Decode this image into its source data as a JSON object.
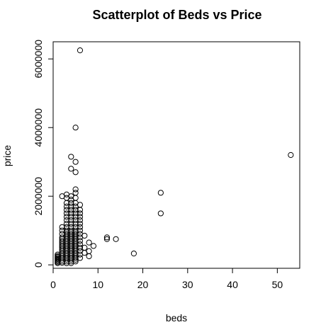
{
  "chart_data": {
    "type": "scatter",
    "title": "Scatterplot of Beds vs Price",
    "xlabel": "beds",
    "ylabel": "price",
    "xlim": [
      0,
      55
    ],
    "ylim": [
      -100000,
      6500000
    ],
    "x_ticks": [
      0,
      10,
      20,
      30,
      40,
      50
    ],
    "x_tick_labels": [
      "0",
      "10",
      "20",
      "30",
      "40",
      "50"
    ],
    "y_ticks": [
      0,
      2000000,
      4000000,
      6000000
    ],
    "y_tick_labels": [
      "0",
      "2000000",
      "4000000",
      "6000000"
    ],
    "grid": false,
    "series": [
      {
        "marker": "open-circle",
        "points": [
          [
            1,
            50000
          ],
          [
            1,
            80000
          ],
          [
            1,
            110000
          ],
          [
            1,
            140000
          ],
          [
            1,
            170000
          ],
          [
            1,
            200000
          ],
          [
            1,
            230000
          ],
          [
            1,
            260000
          ],
          [
            1,
            300000
          ],
          [
            2,
            60000
          ],
          [
            2,
            100000
          ],
          [
            2,
            150000
          ],
          [
            2,
            200000
          ],
          [
            2,
            250000
          ],
          [
            2,
            300000
          ],
          [
            2,
            350000
          ],
          [
            2,
            400000
          ],
          [
            2,
            450000
          ],
          [
            2,
            500000
          ],
          [
            2,
            550000
          ],
          [
            2,
            600000
          ],
          [
            2,
            650000
          ],
          [
            2,
            700000
          ],
          [
            2,
            750000
          ],
          [
            2,
            800000
          ],
          [
            2,
            900000
          ],
          [
            2,
            1000000
          ],
          [
            2,
            1100000
          ],
          [
            2,
            2000000
          ],
          [
            3,
            50000
          ],
          [
            3,
            100000
          ],
          [
            3,
            150000
          ],
          [
            3,
            200000
          ],
          [
            3,
            250000
          ],
          [
            3,
            300000
          ],
          [
            3,
            350000
          ],
          [
            3,
            400000
          ],
          [
            3,
            450000
          ],
          [
            3,
            500000
          ],
          [
            3,
            550000
          ],
          [
            3,
            600000
          ],
          [
            3,
            650000
          ],
          [
            3,
            700000
          ],
          [
            3,
            750000
          ],
          [
            3,
            800000
          ],
          [
            3,
            850000
          ],
          [
            3,
            900000
          ],
          [
            3,
            950000
          ],
          [
            3,
            1000000
          ],
          [
            3,
            1100000
          ],
          [
            3,
            1200000
          ],
          [
            3,
            1300000
          ],
          [
            3,
            1400000
          ],
          [
            3,
            1500000
          ],
          [
            3,
            1600000
          ],
          [
            3,
            1700000
          ],
          [
            3,
            1800000
          ],
          [
            3,
            1950000
          ],
          [
            3,
            2050000
          ],
          [
            4,
            50000
          ],
          [
            4,
            100000
          ],
          [
            4,
            150000
          ],
          [
            4,
            200000
          ],
          [
            4,
            250000
          ],
          [
            4,
            300000
          ],
          [
            4,
            350000
          ],
          [
            4,
            400000
          ],
          [
            4,
            450000
          ],
          [
            4,
            500000
          ],
          [
            4,
            550000
          ],
          [
            4,
            600000
          ],
          [
            4,
            650000
          ],
          [
            4,
            700000
          ],
          [
            4,
            750000
          ],
          [
            4,
            800000
          ],
          [
            4,
            850000
          ],
          [
            4,
            900000
          ],
          [
            4,
            950000
          ],
          [
            4,
            1000000
          ],
          [
            4,
            1100000
          ],
          [
            4,
            1200000
          ],
          [
            4,
            1300000
          ],
          [
            4,
            1400000
          ],
          [
            4,
            1500000
          ],
          [
            4,
            1600000
          ],
          [
            4,
            1700000
          ],
          [
            4,
            1800000
          ],
          [
            4,
            1900000
          ],
          [
            4,
            2000000
          ],
          [
            4,
            2800000
          ],
          [
            4,
            3150000
          ],
          [
            5,
            100000
          ],
          [
            5,
            150000
          ],
          [
            5,
            200000
          ],
          [
            5,
            250000
          ],
          [
            5,
            300000
          ],
          [
            5,
            350000
          ],
          [
            5,
            400000
          ],
          [
            5,
            450000
          ],
          [
            5,
            500000
          ],
          [
            5,
            550000
          ],
          [
            5,
            600000
          ],
          [
            5,
            650000
          ],
          [
            5,
            700000
          ],
          [
            5,
            750000
          ],
          [
            5,
            800000
          ],
          [
            5,
            850000
          ],
          [
            5,
            900000
          ],
          [
            5,
            950000
          ],
          [
            5,
            1000000
          ],
          [
            5,
            1100000
          ],
          [
            5,
            1200000
          ],
          [
            5,
            1300000
          ],
          [
            5,
            1400000
          ],
          [
            5,
            1500000
          ],
          [
            5,
            1600000
          ],
          [
            5,
            1700000
          ],
          [
            5,
            1800000
          ],
          [
            5,
            1950000
          ],
          [
            5,
            2100000
          ],
          [
            5,
            2200000
          ],
          [
            5,
            2700000
          ],
          [
            5,
            3000000
          ],
          [
            5,
            4000000
          ],
          [
            6,
            200000
          ],
          [
            6,
            300000
          ],
          [
            6,
            400000
          ],
          [
            6,
            500000
          ],
          [
            6,
            600000
          ],
          [
            6,
            700000
          ],
          [
            6,
            800000
          ],
          [
            6,
            900000
          ],
          [
            6,
            1000000
          ],
          [
            6,
            1100000
          ],
          [
            6,
            1200000
          ],
          [
            6,
            1300000
          ],
          [
            6,
            1400000
          ],
          [
            6,
            1500000
          ],
          [
            6,
            1600000
          ],
          [
            6,
            1750000
          ],
          [
            6,
            6250000
          ],
          [
            7,
            350000
          ],
          [
            7,
            500000
          ],
          [
            7,
            850000
          ],
          [
            8,
            250000
          ],
          [
            8,
            400000
          ],
          [
            8,
            650000
          ],
          [
            9,
            550000
          ],
          [
            12,
            750000
          ],
          [
            12,
            800000
          ],
          [
            14,
            750000
          ],
          [
            18,
            330000
          ],
          [
            24,
            1500000
          ],
          [
            24,
            2100000
          ],
          [
            53,
            3200000
          ]
        ]
      }
    ]
  }
}
